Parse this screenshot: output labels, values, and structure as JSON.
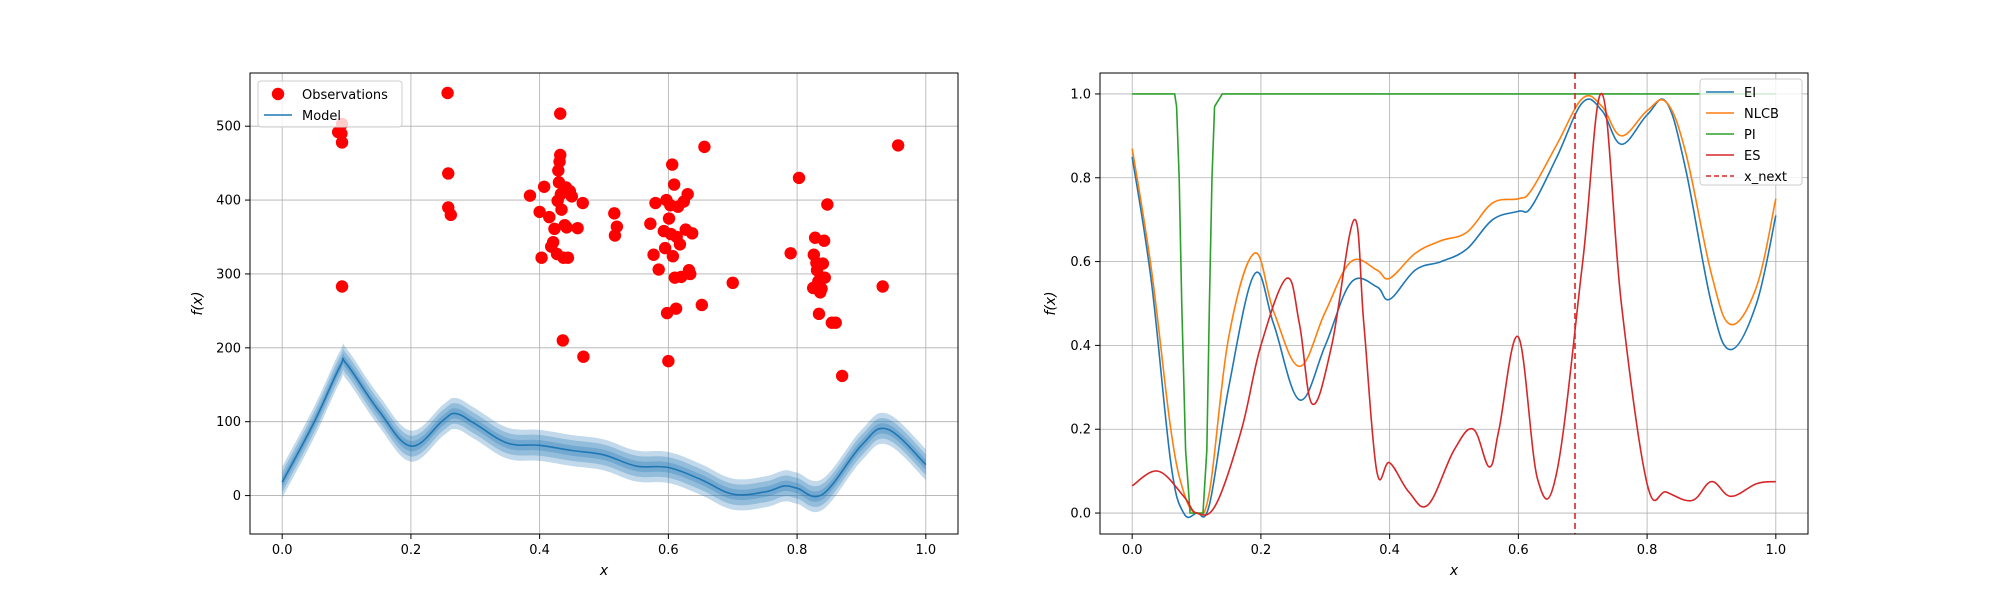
{
  "chart_data": [
    {
      "type": "scatter",
      "title": "",
      "xlabel": "x",
      "ylabel": "f(x)",
      "xlim": [
        -0.05,
        1.05
      ],
      "ylim": [
        -52,
        572
      ],
      "xticks": [
        "0.0",
        "0.2",
        "0.4",
        "0.6",
        "0.8",
        "1.0"
      ],
      "xtick_values": [
        0.0,
        0.2,
        0.4,
        0.6,
        0.8,
        1.0
      ],
      "yticks": [
        "0",
        "100",
        "200",
        "300",
        "400",
        "500"
      ],
      "ytick_values": [
        0,
        100,
        200,
        300,
        400,
        500
      ],
      "grid": true,
      "legend_position": "top-left",
      "legend": [
        {
          "label": "Observations",
          "color": "#ff0000",
          "marker": "circle"
        },
        {
          "label": "Model",
          "color": "#1f77b4",
          "marker": "line"
        }
      ],
      "observations": {
        "name": "Observations",
        "color": "#ff0000",
        "points": [
          [
            0.087,
            492
          ],
          [
            0.093,
            503
          ],
          [
            0.092,
            490
          ],
          [
            0.093,
            478
          ],
          [
            0.093,
            283
          ],
          [
            0.257,
            545
          ],
          [
            0.258,
            436
          ],
          [
            0.258,
            390
          ],
          [
            0.262,
            380
          ],
          [
            0.385,
            406
          ],
          [
            0.4,
            384
          ],
          [
            0.403,
            322
          ],
          [
            0.407,
            418
          ],
          [
            0.415,
            377
          ],
          [
            0.418,
            337
          ],
          [
            0.421,
            343
          ],
          [
            0.423,
            361
          ],
          [
            0.427,
            327
          ],
          [
            0.428,
            399
          ],
          [
            0.429,
            440
          ],
          [
            0.43,
            424
          ],
          [
            0.431,
            452
          ],
          [
            0.432,
            461
          ],
          [
            0.433,
            408
          ],
          [
            0.434,
            387
          ],
          [
            0.436,
            210
          ],
          [
            0.437,
            322
          ],
          [
            0.439,
            366
          ],
          [
            0.441,
            417
          ],
          [
            0.442,
            363
          ],
          [
            0.444,
            322
          ],
          [
            0.447,
            412
          ],
          [
            0.45,
            405
          ],
          [
            0.432,
            517
          ],
          [
            0.459,
            362
          ],
          [
            0.467,
            396
          ],
          [
            0.468,
            188
          ],
          [
            0.516,
            382
          ],
          [
            0.517,
            352
          ],
          [
            0.52,
            364
          ],
          [
            0.572,
            368
          ],
          [
            0.577,
            326
          ],
          [
            0.58,
            396
          ],
          [
            0.585,
            306
          ],
          [
            0.593,
            358
          ],
          [
            0.595,
            335
          ],
          [
            0.597,
            400
          ],
          [
            0.598,
            247
          ],
          [
            0.6,
            182
          ],
          [
            0.601,
            375
          ],
          [
            0.603,
            393
          ],
          [
            0.604,
            354
          ],
          [
            0.606,
            448
          ],
          [
            0.607,
            324
          ],
          [
            0.609,
            421
          ],
          [
            0.61,
            295
          ],
          [
            0.612,
            253
          ],
          [
            0.613,
            350
          ],
          [
            0.615,
            391
          ],
          [
            0.618,
            340
          ],
          [
            0.62,
            296
          ],
          [
            0.624,
            398
          ],
          [
            0.627,
            360
          ],
          [
            0.63,
            408
          ],
          [
            0.632,
            305
          ],
          [
            0.634,
            300
          ],
          [
            0.637,
            355
          ],
          [
            0.652,
            258
          ],
          [
            0.656,
            472
          ],
          [
            0.7,
            288
          ],
          [
            0.79,
            328
          ],
          [
            0.803,
            430
          ],
          [
            0.825,
            281
          ],
          [
            0.826,
            326
          ],
          [
            0.828,
            349
          ],
          [
            0.83,
            315
          ],
          [
            0.831,
            305
          ],
          [
            0.833,
            290
          ],
          [
            0.834,
            246
          ],
          [
            0.836,
            275
          ],
          [
            0.838,
            280
          ],
          [
            0.84,
            314
          ],
          [
            0.842,
            345
          ],
          [
            0.843,
            295
          ],
          [
            0.847,
            394
          ],
          [
            0.854,
            234
          ],
          [
            0.86,
            234
          ],
          [
            0.87,
            162
          ],
          [
            0.933,
            283
          ],
          [
            0.957,
            474
          ]
        ]
      },
      "model": {
        "name": "Model",
        "color": "#1f77b4",
        "bands": [
          7,
          14,
          21
        ],
        "x": [
          0.0,
          0.05,
          0.09,
          0.1,
          0.15,
          0.2,
          0.25,
          0.27,
          0.3,
          0.35,
          0.4,
          0.45,
          0.5,
          0.55,
          0.6,
          0.65,
          0.7,
          0.75,
          0.78,
          0.8,
          0.84,
          0.9,
          0.94,
          1.0
        ],
        "mean": [
          18,
          100,
          175,
          178,
          115,
          67,
          102,
          111,
          97,
          71,
          68,
          61,
          55,
          40,
          38,
          22,
          2,
          5,
          13,
          10,
          2,
          68,
          90,
          42
        ]
      }
    },
    {
      "type": "line",
      "title": "",
      "xlabel": "x",
      "ylabel": "f(x)",
      "xlim": [
        -0.05,
        1.05
      ],
      "ylim": [
        -0.05,
        1.05
      ],
      "xticks": [
        "0.0",
        "0.2",
        "0.4",
        "0.6",
        "0.8",
        "1.0"
      ],
      "xtick_values": [
        0.0,
        0.2,
        0.4,
        0.6,
        0.8,
        1.0
      ],
      "yticks": [
        "0.0",
        "0.2",
        "0.4",
        "0.6",
        "0.8",
        "1.0"
      ],
      "ytick_values": [
        0.0,
        0.2,
        0.4,
        0.6,
        0.8,
        1.0
      ],
      "grid": true,
      "legend_position": "top-right",
      "series": [
        {
          "name": "EI",
          "color": "#1f77b4",
          "x": [
            0.0,
            0.03,
            0.06,
            0.08,
            0.1,
            0.12,
            0.15,
            0.19,
            0.22,
            0.26,
            0.3,
            0.34,
            0.38,
            0.4,
            0.44,
            0.48,
            0.52,
            0.56,
            0.6,
            0.62,
            0.66,
            0.7,
            0.73,
            0.76,
            0.8,
            0.83,
            0.86,
            0.9,
            0.93,
            0.97,
            1.0
          ],
          "y": [
            0.85,
            0.55,
            0.12,
            0.0,
            0.0,
            0.02,
            0.3,
            0.57,
            0.45,
            0.27,
            0.4,
            0.55,
            0.54,
            0.51,
            0.58,
            0.6,
            0.63,
            0.7,
            0.72,
            0.73,
            0.85,
            0.98,
            0.96,
            0.88,
            0.95,
            0.98,
            0.82,
            0.5,
            0.39,
            0.5,
            0.71
          ]
        },
        {
          "name": "NLCB",
          "color": "#ff7f0e",
          "x": [
            0.0,
            0.03,
            0.06,
            0.08,
            0.1,
            0.12,
            0.15,
            0.19,
            0.22,
            0.26,
            0.3,
            0.34,
            0.38,
            0.4,
            0.44,
            0.48,
            0.52,
            0.56,
            0.6,
            0.62,
            0.66,
            0.7,
            0.73,
            0.76,
            0.8,
            0.83,
            0.86,
            0.9,
            0.93,
            0.97,
            1.0
          ],
          "y": [
            0.87,
            0.58,
            0.2,
            0.05,
            0.0,
            0.05,
            0.42,
            0.62,
            0.48,
            0.35,
            0.48,
            0.6,
            0.58,
            0.56,
            0.62,
            0.65,
            0.67,
            0.74,
            0.75,
            0.77,
            0.88,
            0.99,
            0.97,
            0.9,
            0.96,
            0.98,
            0.86,
            0.57,
            0.45,
            0.54,
            0.75
          ]
        },
        {
          "name": "PI",
          "color": "#2ca02c",
          "x": [
            0.0,
            0.066,
            0.069,
            0.073,
            0.077,
            0.083,
            0.09,
            0.1,
            0.11,
            0.116,
            0.12,
            0.124,
            0.128,
            0.14,
            1.0
          ],
          "y": [
            1.0,
            1.0,
            0.97,
            0.8,
            0.5,
            0.15,
            0.0,
            0.0,
            0.0,
            0.15,
            0.5,
            0.8,
            0.97,
            1.0,
            1.0
          ]
        },
        {
          "name": "ES",
          "color": "#d62728",
          "x": [
            0.0,
            0.04,
            0.08,
            0.1,
            0.13,
            0.17,
            0.2,
            0.24,
            0.26,
            0.28,
            0.31,
            0.345,
            0.36,
            0.38,
            0.4,
            0.43,
            0.46,
            0.5,
            0.53,
            0.555,
            0.57,
            0.6,
            0.63,
            0.66,
            0.7,
            0.73,
            0.76,
            0.8,
            0.83,
            0.87,
            0.9,
            0.93,
            0.97,
            1.0
          ],
          "y": [
            0.065,
            0.1,
            0.04,
            0.0,
            0.02,
            0.2,
            0.4,
            0.56,
            0.45,
            0.26,
            0.4,
            0.7,
            0.45,
            0.1,
            0.12,
            0.05,
            0.02,
            0.15,
            0.2,
            0.11,
            0.2,
            0.42,
            0.08,
            0.1,
            0.6,
            1.0,
            0.5,
            0.07,
            0.05,
            0.03,
            0.075,
            0.04,
            0.07,
            0.075
          ]
        }
      ],
      "vline": {
        "name": "x_next",
        "x": 0.688,
        "color": "#d62728",
        "style": "dashed"
      },
      "legend": [
        {
          "label": "EI",
          "color": "#1f77b4",
          "style": "solid"
        },
        {
          "label": "NLCB",
          "color": "#ff7f0e",
          "style": "solid"
        },
        {
          "label": "PI",
          "color": "#2ca02c",
          "style": "solid"
        },
        {
          "label": "ES",
          "color": "#d62728",
          "style": "solid"
        },
        {
          "label": "x_next",
          "color": "#d62728",
          "style": "dashed"
        }
      ]
    }
  ]
}
